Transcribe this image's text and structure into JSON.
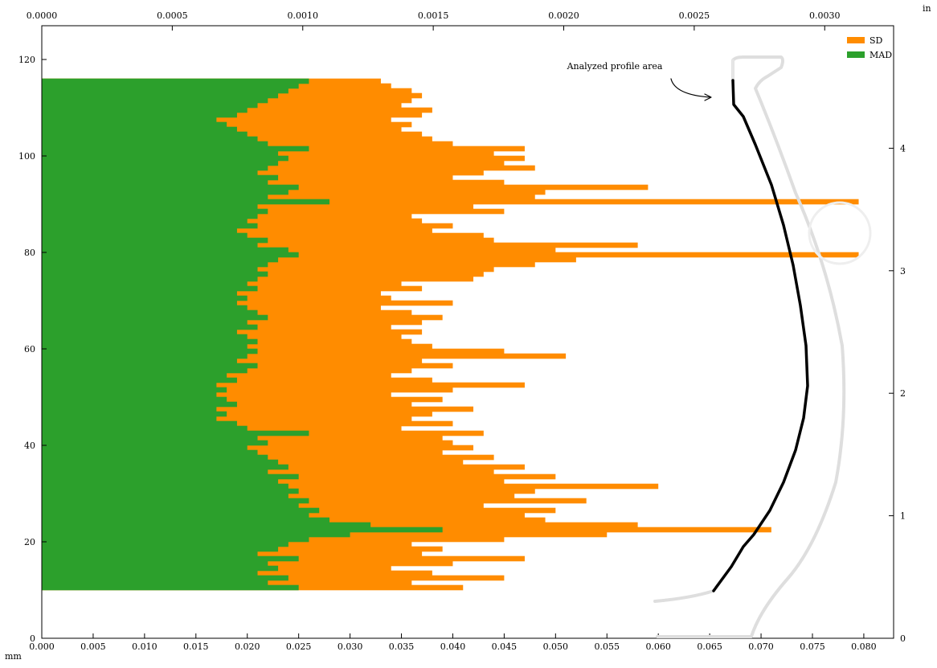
{
  "chart_data": {
    "type": "hbar-overlap",
    "annotation": "Analyzed profile area",
    "x_unit_label": "mm",
    "x2_unit_label": "in",
    "y": [
      10,
      11,
      12,
      13,
      14,
      15,
      16,
      17,
      18,
      19,
      20,
      21,
      22,
      23,
      24,
      25,
      26,
      27,
      28,
      29,
      30,
      31,
      32,
      33,
      34,
      35,
      36,
      37,
      38,
      39,
      40,
      41,
      42,
      43,
      44,
      45,
      46,
      47,
      48,
      49,
      50,
      51,
      52,
      53,
      54,
      55,
      56,
      57,
      58,
      59,
      60,
      61,
      62,
      63,
      64,
      65,
      66,
      67,
      68,
      69,
      70,
      71,
      72,
      73,
      74,
      75,
      76,
      77,
      78,
      79,
      80,
      81,
      82,
      83,
      84,
      85,
      86,
      87,
      88,
      89,
      90,
      91,
      92,
      93,
      94,
      95,
      96,
      97,
      98,
      99,
      100,
      101,
      102,
      103,
      104,
      105,
      106,
      107,
      108,
      109,
      110,
      111,
      112,
      113,
      114,
      115
    ],
    "series": [
      {
        "name": "SD",
        "color": "#ff8c00",
        "values": [
          0.041,
          0.036,
          0.045,
          0.038,
          0.034,
          0.04,
          0.047,
          0.037,
          0.039,
          0.036,
          0.045,
          0.055,
          0.071,
          0.058,
          0.049,
          0.047,
          0.05,
          0.043,
          0.053,
          0.046,
          0.048,
          0.06,
          0.045,
          0.05,
          0.044,
          0.047,
          0.041,
          0.044,
          0.039,
          0.042,
          0.04,
          0.039,
          0.043,
          0.035,
          0.04,
          0.036,
          0.038,
          0.042,
          0.036,
          0.039,
          0.034,
          0.04,
          0.047,
          0.038,
          0.034,
          0.036,
          0.04,
          0.037,
          0.051,
          0.045,
          0.038,
          0.036,
          0.035,
          0.037,
          0.034,
          0.037,
          0.039,
          0.036,
          0.033,
          0.04,
          0.034,
          0.033,
          0.037,
          0.035,
          0.042,
          0.043,
          0.044,
          0.048,
          0.052,
          0.0795,
          0.05,
          0.058,
          0.044,
          0.043,
          0.038,
          0.04,
          0.037,
          0.036,
          0.045,
          0.042,
          0.0795,
          0.048,
          0.049,
          0.059,
          0.045,
          0.04,
          0.043,
          0.048,
          0.045,
          0.047,
          0.044,
          0.047,
          0.04,
          0.038,
          0.037,
          0.035,
          0.036,
          0.034,
          0.037,
          0.038,
          0.035,
          0.036,
          0.037,
          0.036,
          0.034,
          0.033
        ]
      },
      {
        "name": "MAD",
        "color": "#2ca02c",
        "values": [
          0.025,
          0.022,
          0.024,
          0.021,
          0.023,
          0.022,
          0.025,
          0.021,
          0.023,
          0.024,
          0.026,
          0.03,
          0.039,
          0.032,
          0.028,
          0.026,
          0.027,
          0.025,
          0.026,
          0.024,
          0.025,
          0.024,
          0.023,
          0.025,
          0.022,
          0.024,
          0.023,
          0.022,
          0.021,
          0.02,
          0.022,
          0.021,
          0.026,
          0.02,
          0.019,
          0.017,
          0.018,
          0.017,
          0.019,
          0.018,
          0.017,
          0.018,
          0.017,
          0.019,
          0.018,
          0.02,
          0.021,
          0.019,
          0.02,
          0.021,
          0.02,
          0.021,
          0.02,
          0.019,
          0.021,
          0.02,
          0.022,
          0.021,
          0.02,
          0.019,
          0.02,
          0.019,
          0.021,
          0.02,
          0.021,
          0.022,
          0.021,
          0.022,
          0.023,
          0.025,
          0.024,
          0.021,
          0.022,
          0.02,
          0.019,
          0.021,
          0.02,
          0.021,
          0.022,
          0.021,
          0.028,
          0.022,
          0.024,
          0.025,
          0.022,
          0.023,
          0.021,
          0.022,
          0.023,
          0.024,
          0.023,
          0.026,
          0.022,
          0.021,
          0.02,
          0.019,
          0.018,
          0.017,
          0.019,
          0.02,
          0.021,
          0.022,
          0.023,
          0.024,
          0.025,
          0.026
        ]
      }
    ],
    "xlim": [
      0,
      0.0829
    ],
    "xticks": [
      {
        "value": 0,
        "label": "0.000"
      },
      {
        "value": 0.005,
        "label": "0.005"
      },
      {
        "value": 0.01,
        "label": "0.010"
      },
      {
        "value": 0.015,
        "label": "0.015"
      },
      {
        "value": 0.02,
        "label": "0.020"
      },
      {
        "value": 0.025,
        "label": "0.025"
      },
      {
        "value": 0.03,
        "label": "0.030"
      },
      {
        "value": 0.035,
        "label": "0.035"
      },
      {
        "value": 0.04,
        "label": "0.040"
      },
      {
        "value": 0.045,
        "label": "0.045"
      },
      {
        "value": 0.05,
        "label": "0.050"
      },
      {
        "value": 0.055,
        "label": "0.055"
      },
      {
        "value": 0.06,
        "label": "0.060"
      },
      {
        "value": 0.065,
        "label": "0.065"
      },
      {
        "value": 0.07,
        "label": "0.070"
      },
      {
        "value": 0.075,
        "label": "0.075"
      },
      {
        "value": 0.08,
        "label": "0.080"
      }
    ],
    "x2lim": [
      0,
      0.003264
    ],
    "x2ticks": [
      {
        "value": 0,
        "label": "0.0000"
      },
      {
        "value": 0.0005,
        "label": "0.0005"
      },
      {
        "value": 0.001,
        "label": "0.0010"
      },
      {
        "value": 0.0015,
        "label": "0.0015"
      },
      {
        "value": 0.002,
        "label": "0.0020"
      },
      {
        "value": 0.0025,
        "label": "0.0025"
      },
      {
        "value": 0.003,
        "label": "0.0030"
      }
    ],
    "ylim": [
      0,
      127
    ],
    "yticks": [
      0,
      20,
      40,
      60,
      80,
      100,
      120
    ],
    "y2lim": [
      0,
      5
    ],
    "y2ticks": [
      0,
      1,
      2,
      3,
      4
    ],
    "legend": "upper right"
  }
}
